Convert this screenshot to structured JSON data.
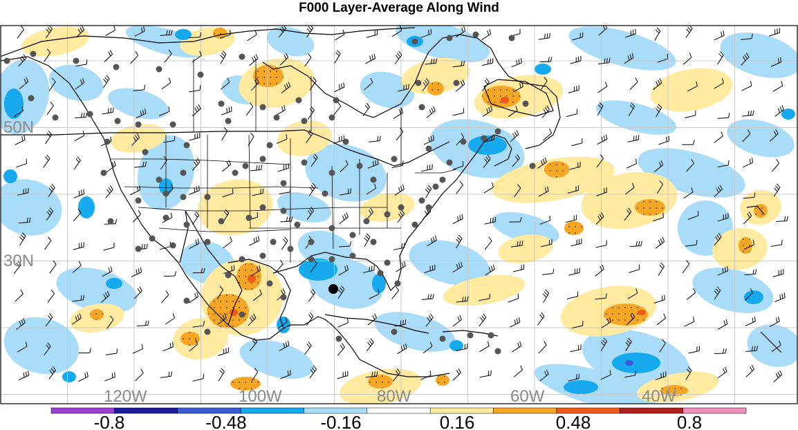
{
  "title": "F000 Layer-Average Along Wind",
  "lat_labels": [
    "50N",
    "30N"
  ],
  "lon_labels": [
    "120W",
    "100W",
    "80W",
    "60W",
    "40W"
  ],
  "colorbar": {
    "colors": [
      "#9a3fd6",
      "#1c1c9e",
      "#3a5cd8",
      "#16a9ee",
      "#a8dcf8",
      "#ffffff",
      "#ffeaa0",
      "#f5a624",
      "#f05a1a",
      "#b0201e",
      "#f08fbb"
    ],
    "labels": [
      "-0.8",
      "-0.48",
      "-0.16",
      "0.16",
      "0.48",
      "0.8"
    ]
  },
  "fill_colors": {
    "light_blue": "#a8dcf8",
    "blue": "#16a9ee",
    "mid_blue": "#3a5cd8",
    "light_yellow": "#ffeaa0",
    "orange": "#f5a624",
    "red_orange": "#f05a1a"
  },
  "markers": {
    "station_color": "#555555",
    "focus_color": "#000000"
  }
}
